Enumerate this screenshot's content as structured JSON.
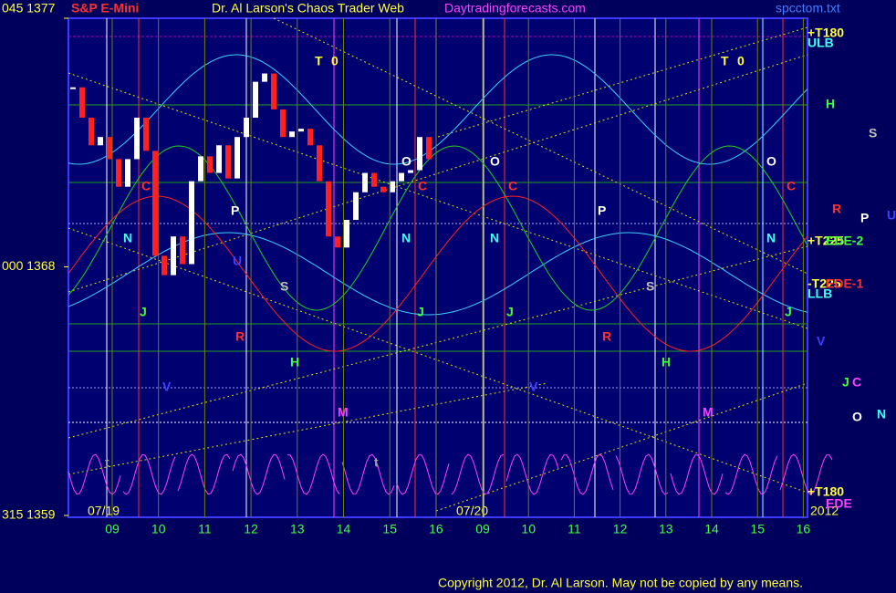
{
  "chart_data": {
    "type": "candlestick",
    "title": "Dr. Al Larson's Chaos Trader Web",
    "symbol": "S&P E-Mini",
    "site": "Daytradingforecasts.com",
    "file": "spcctom.txt",
    "copyright": "Copyright 2012, Dr. Al Larson. May not be copied by any means.",
    "ylim": [
      1359,
      1377
    ],
    "yticks": [
      {
        "value": 1377,
        "label": "045 1377"
      },
      {
        "value": 1368,
        "label": "000 1368"
      },
      {
        "value": 1359,
        "label": "315 1359"
      }
    ],
    "categories": [
      "09",
      "10",
      "11",
      "12",
      "13",
      "14",
      "15",
      "16",
      "09",
      "10",
      "11",
      "12",
      "13",
      "14",
      "15",
      "16"
    ],
    "dates": [
      "07/19",
      "07/20",
      "2012"
    ],
    "open": [
      1374.5,
      1374.5,
      1373.4,
      1372.4,
      1372.7,
      1371.9,
      1370.9,
      1371.9,
      1373.4,
      1372.2,
      1368.4,
      1367.7,
      1369.1,
      1368.1,
      1371.1,
      1372.0,
      1371.4,
      1372.4,
      1371.2,
      1372.7,
      1373.4,
      1374.7,
      1375.0,
      1373.7,
      1372.7,
      1372.9,
      1373.0,
      1372.4,
      1371.1,
      1369.1,
      1368.7,
      1369.7,
      1370.7,
      1371.4,
      1370.9,
      1370.7,
      1371.1,
      1371.4,
      1371.5,
      1372.7
    ],
    "close": [
      1374.5,
      1373.4,
      1372.4,
      1372.7,
      1371.9,
      1370.9,
      1371.9,
      1373.4,
      1372.2,
      1368.4,
      1367.7,
      1369.1,
      1368.1,
      1371.1,
      1372.0,
      1371.4,
      1372.4,
      1371.2,
      1372.7,
      1373.4,
      1374.7,
      1375.0,
      1373.7,
      1372.7,
      1372.9,
      1373.0,
      1372.4,
      1371.1,
      1369.1,
      1368.7,
      1369.7,
      1370.7,
      1371.4,
      1370.9,
      1370.7,
      1371.1,
      1371.4,
      1371.5,
      1372.7,
      1371.9
    ],
    "up_color": "#ffffff",
    "down_color": "#ff2020",
    "annotations": [
      "T",
      "0",
      "T",
      "0",
      "O",
      "O",
      "O",
      "C",
      "C",
      "C",
      "C",
      "P",
      "P",
      "N",
      "N",
      "N",
      "N",
      "U",
      "S",
      "S",
      "J",
      "J",
      "J",
      "J",
      "R",
      "R",
      "H",
      "H",
      "V",
      "V",
      "M",
      "M",
      "t",
      "t",
      "+T180",
      "ULB",
      "H",
      "S",
      "R",
      "P",
      "U",
      "+T225",
      "EDE-2",
      "-T225",
      "EDE-1",
      "LLB",
      "V",
      "J",
      "C",
      "O",
      "N",
      "+T180",
      "EDE"
    ]
  }
}
